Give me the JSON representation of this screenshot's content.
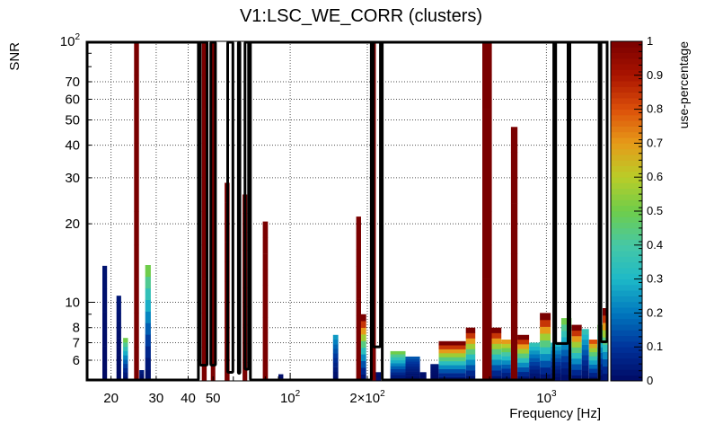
{
  "chart_data": {
    "type": "heatmap",
    "title": "V1:LSC_WE_CORR (clusters)",
    "xlabel": "Frequency [Hz]",
    "ylabel": "SNR",
    "zlabel": "use-percentage",
    "x_scale": "log",
    "y_scale": "log",
    "xlim": [
      16,
      1740
    ],
    "ylim": [
      5,
      100
    ],
    "zlim": [
      0,
      1
    ],
    "x_ticks": [
      {
        "value": 20,
        "label": "20"
      },
      {
        "value": 30,
        "label": "30"
      },
      {
        "value": 40,
        "label": "40"
      },
      {
        "value": 50,
        "label": "50"
      },
      {
        "value": 100,
        "label": "10",
        "exp": "2"
      },
      {
        "value": 200,
        "label": "2×10",
        "exp": "2"
      },
      {
        "value": 1000,
        "label": "10",
        "exp": "3"
      }
    ],
    "y_ticks": [
      {
        "value": 6,
        "label": "6"
      },
      {
        "value": 7,
        "label": "7"
      },
      {
        "value": 8,
        "label": "8"
      },
      {
        "value": 10,
        "label": "10"
      },
      {
        "value": 20,
        "label": "20"
      },
      {
        "value": 30,
        "label": "30"
      },
      {
        "value": 40,
        "label": "40"
      },
      {
        "value": 50,
        "label": "50"
      },
      {
        "value": 60,
        "label": "60"
      },
      {
        "value": 70,
        "label": "70"
      },
      {
        "value": 100,
        "label": "10",
        "exp": "2"
      }
    ],
    "colorbar_ticks": [
      {
        "value": 0,
        "label": "0"
      },
      {
        "value": 0.1,
        "label": "0.1"
      },
      {
        "value": 0.2,
        "label": "0.2"
      },
      {
        "value": 0.3,
        "label": "0.3"
      },
      {
        "value": 0.4,
        "label": "0.4"
      },
      {
        "value": 0.5,
        "label": "0.5"
      },
      {
        "value": 0.6,
        "label": "0.6"
      },
      {
        "value": 0.7,
        "label": "0.7"
      },
      {
        "value": 0.8,
        "label": "0.8"
      },
      {
        "value": 0.9,
        "label": "0.9"
      },
      {
        "value": 1,
        "label": "1"
      }
    ],
    "grid": true,
    "colorbar": "right",
    "columns": [
      {
        "f": [
          18.5,
          19.3
        ],
        "top": 13.8,
        "use_top": 0.02
      },
      {
        "f": [
          21.0,
          21.9
        ],
        "top": 10.6,
        "use_top": 0.03
      },
      {
        "f": [
          22.3,
          23.3
        ],
        "top": 7.3,
        "use_top": 0.5
      },
      {
        "f": [
          24.6,
          25.7
        ],
        "top": 100,
        "use_top": 1
      },
      {
        "f": [
          25.8,
          26.9
        ],
        "top": 5.5,
        "use_top": 0.05
      },
      {
        "f": [
          27.2,
          28.6
        ],
        "top": 13.9,
        "use_top": 0.5
      },
      {
        "f": [
          45.2,
          47.2
        ],
        "top": 100,
        "use_top": 1
      },
      {
        "f": [
          49.0,
          51.0
        ],
        "top": 100,
        "use_top": 1
      },
      {
        "f": [
          55.5,
          58.0
        ],
        "top": 28.7,
        "use_top": 1
      },
      {
        "f": [
          65.2,
          68.0
        ],
        "top": 25.9,
        "use_top": 1
      },
      {
        "f": [
          78.2,
          81.9
        ],
        "top": 20.4,
        "use_top": 1
      },
      {
        "f": [
          90.0,
          94.0
        ],
        "top": 5.3,
        "use_top": 0.01
      },
      {
        "f": [
          147,
          154
        ],
        "top": 7.5,
        "use_top": 0.25
      },
      {
        "f": [
          181,
          189
        ],
        "top": 21.3,
        "use_top": 1
      },
      {
        "f": [
          189,
          198
        ],
        "top": 9.0,
        "use_top": 1
      },
      {
        "f": [
          207,
          216
        ],
        "top": 100,
        "use_top": 1
      },
      {
        "f": [
          216,
          226
        ],
        "top": 5.4,
        "use_top": 0.02
      },
      {
        "f": [
          246,
          282
        ],
        "top": 6.5,
        "use_top": 0.5
      },
      {
        "f": [
          282,
          321
        ],
        "top": 6.2,
        "use_top": 0.15
      },
      {
        "f": [
          321,
          340
        ],
        "top": 5.4,
        "use_top": 0.02
      },
      {
        "f": [
          353,
          380
        ],
        "top": 5.8,
        "use_top": 0.03
      },
      {
        "f": [
          380,
          485
        ],
        "top": 7.1,
        "use_top": 1
      },
      {
        "f": [
          485,
          528
        ],
        "top": 8.0,
        "use_top": 1
      },
      {
        "f": [
          562,
          612
        ],
        "top": 100,
        "use_top": 1
      },
      {
        "f": [
          612,
          667
        ],
        "top": 8.0,
        "use_top": 1
      },
      {
        "f": [
          667,
          727
        ],
        "top": 7.2,
        "use_top": 0.7
      },
      {
        "f": [
          727,
          771
        ],
        "top": 47,
        "use_top": 1
      },
      {
        "f": [
          771,
          856
        ],
        "top": 7.5,
        "use_top": 1
      },
      {
        "f": [
          856,
          943
        ],
        "top": 7.0,
        "use_top": 0.35
      },
      {
        "f": [
          943,
          1039
        ],
        "top": 9.1,
        "use_top": 1
      },
      {
        "f": [
          1039,
          1143
        ],
        "top": 7.0,
        "use_top": 0.3
      },
      {
        "f": [
          1143,
          1254
        ],
        "top": 8.7,
        "use_top": 0.5
      },
      {
        "f": [
          1254,
          1374
        ],
        "top": 8.2,
        "use_top": 1
      },
      {
        "f": [
          1374,
          1466
        ],
        "top": 7.9,
        "use_top": 0.35
      },
      {
        "f": [
          1466,
          1582
        ],
        "top": 7.2,
        "use_top": 0.8
      },
      {
        "f": [
          1582,
          1658
        ],
        "top": 8.2,
        "use_top": 0.5
      },
      {
        "f": [
          1658,
          1740
        ],
        "top": 9.5,
        "use_top": 1
      }
    ],
    "outlined_regions": [
      {
        "f": [
          16,
          44.2
        ],
        "snr": [
          5,
          100
        ]
      },
      {
        "f": [
          44.2,
          47.8
        ],
        "snr": [
          5.7,
          100
        ]
      },
      {
        "f": [
          48.6,
          51.5
        ],
        "snr": [
          5.7,
          100
        ]
      },
      {
        "f": [
          56.6,
          60.3
        ],
        "snr": [
          5.35,
          100
        ]
      },
      {
        "f": [
          62.3,
          64.2
        ],
        "snr": [
          5.3,
          100
        ]
      },
      {
        "f": [
          66.1,
          69.4
        ],
        "snr": [
          5.5,
          100
        ]
      },
      {
        "f": [
          69.4,
          209
        ],
        "snr": [
          5,
          100
        ]
      },
      {
        "f": [
          209,
          227
        ],
        "snr": [
          6.7,
          100
        ]
      },
      {
        "f": [
          227,
          1078
        ],
        "snr": [
          5,
          100
        ]
      },
      {
        "f": [
          1078,
          1225
        ],
        "snr": [
          6.9,
          100
        ]
      },
      {
        "f": [
          1225,
          1620
        ],
        "snr": [
          5,
          100
        ]
      },
      {
        "f": [
          1620,
          1740
        ],
        "snr": [
          7.0,
          100
        ]
      }
    ]
  }
}
